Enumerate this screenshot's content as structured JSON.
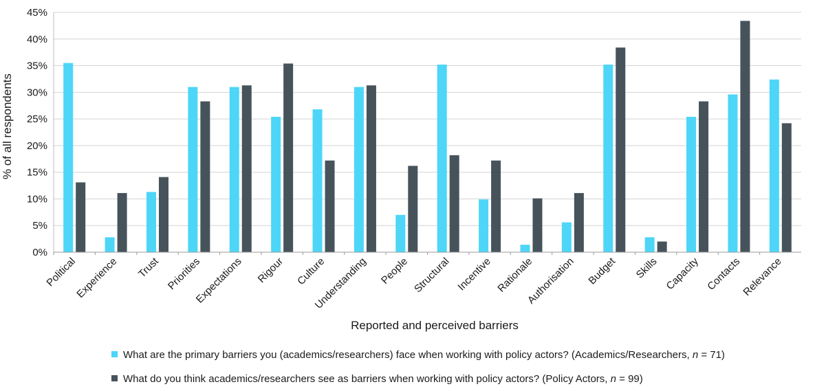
{
  "chart_data": {
    "type": "bar",
    "xlabel": "Reported and perceived barriers",
    "ylabel": "% of all respondents",
    "ylim": [
      0,
      45
    ],
    "yticks": [
      "0%",
      "5%",
      "10%",
      "15%",
      "20%",
      "25%",
      "30%",
      "35%",
      "40%",
      "45%"
    ],
    "grid": true,
    "legend_position": "bottom",
    "categories": [
      "Political",
      "Experience",
      "Trust",
      "Priorities",
      "Expectations",
      "Rigour",
      "Culture",
      "Understanding",
      "People",
      "Structural",
      "Incentive",
      "Rationale",
      "Authorisation",
      "Budget",
      "Skills",
      "Capacity",
      "Contacts",
      "Relevance"
    ],
    "series": [
      {
        "name": "What are the primary barriers you (academics/researchers) face when working with policy actors? (Academics/Researchers, n = 71)",
        "legend_prefix": "What are the primary barriers you (academics/researchers) face when working with policy actors? (Academics/Researchers, ",
        "legend_n": "n",
        "legend_suffix": " = 71)",
        "color": "#4dd6f7",
        "values": [
          35.5,
          2.8,
          11.3,
          31.0,
          31.0,
          25.4,
          26.8,
          31.0,
          7.0,
          35.2,
          9.9,
          1.4,
          5.6,
          35.2,
          2.8,
          25.4,
          29.6,
          32.4
        ]
      },
      {
        "name": "What do you think academics/researchers see as barriers when working with policy actors? (Policy Actors, n = 99)",
        "legend_prefix": "What do you think academics/researchers see as barriers when working with policy actors? (Policy Actors, ",
        "legend_n": "n",
        "legend_suffix": " = 99)",
        "color": "#46535b",
        "values": [
          13.1,
          11.1,
          14.1,
          28.3,
          31.3,
          35.4,
          17.2,
          31.3,
          16.2,
          18.2,
          17.2,
          10.1,
          11.1,
          38.4,
          2.0,
          28.3,
          43.4,
          24.2
        ]
      }
    ]
  }
}
